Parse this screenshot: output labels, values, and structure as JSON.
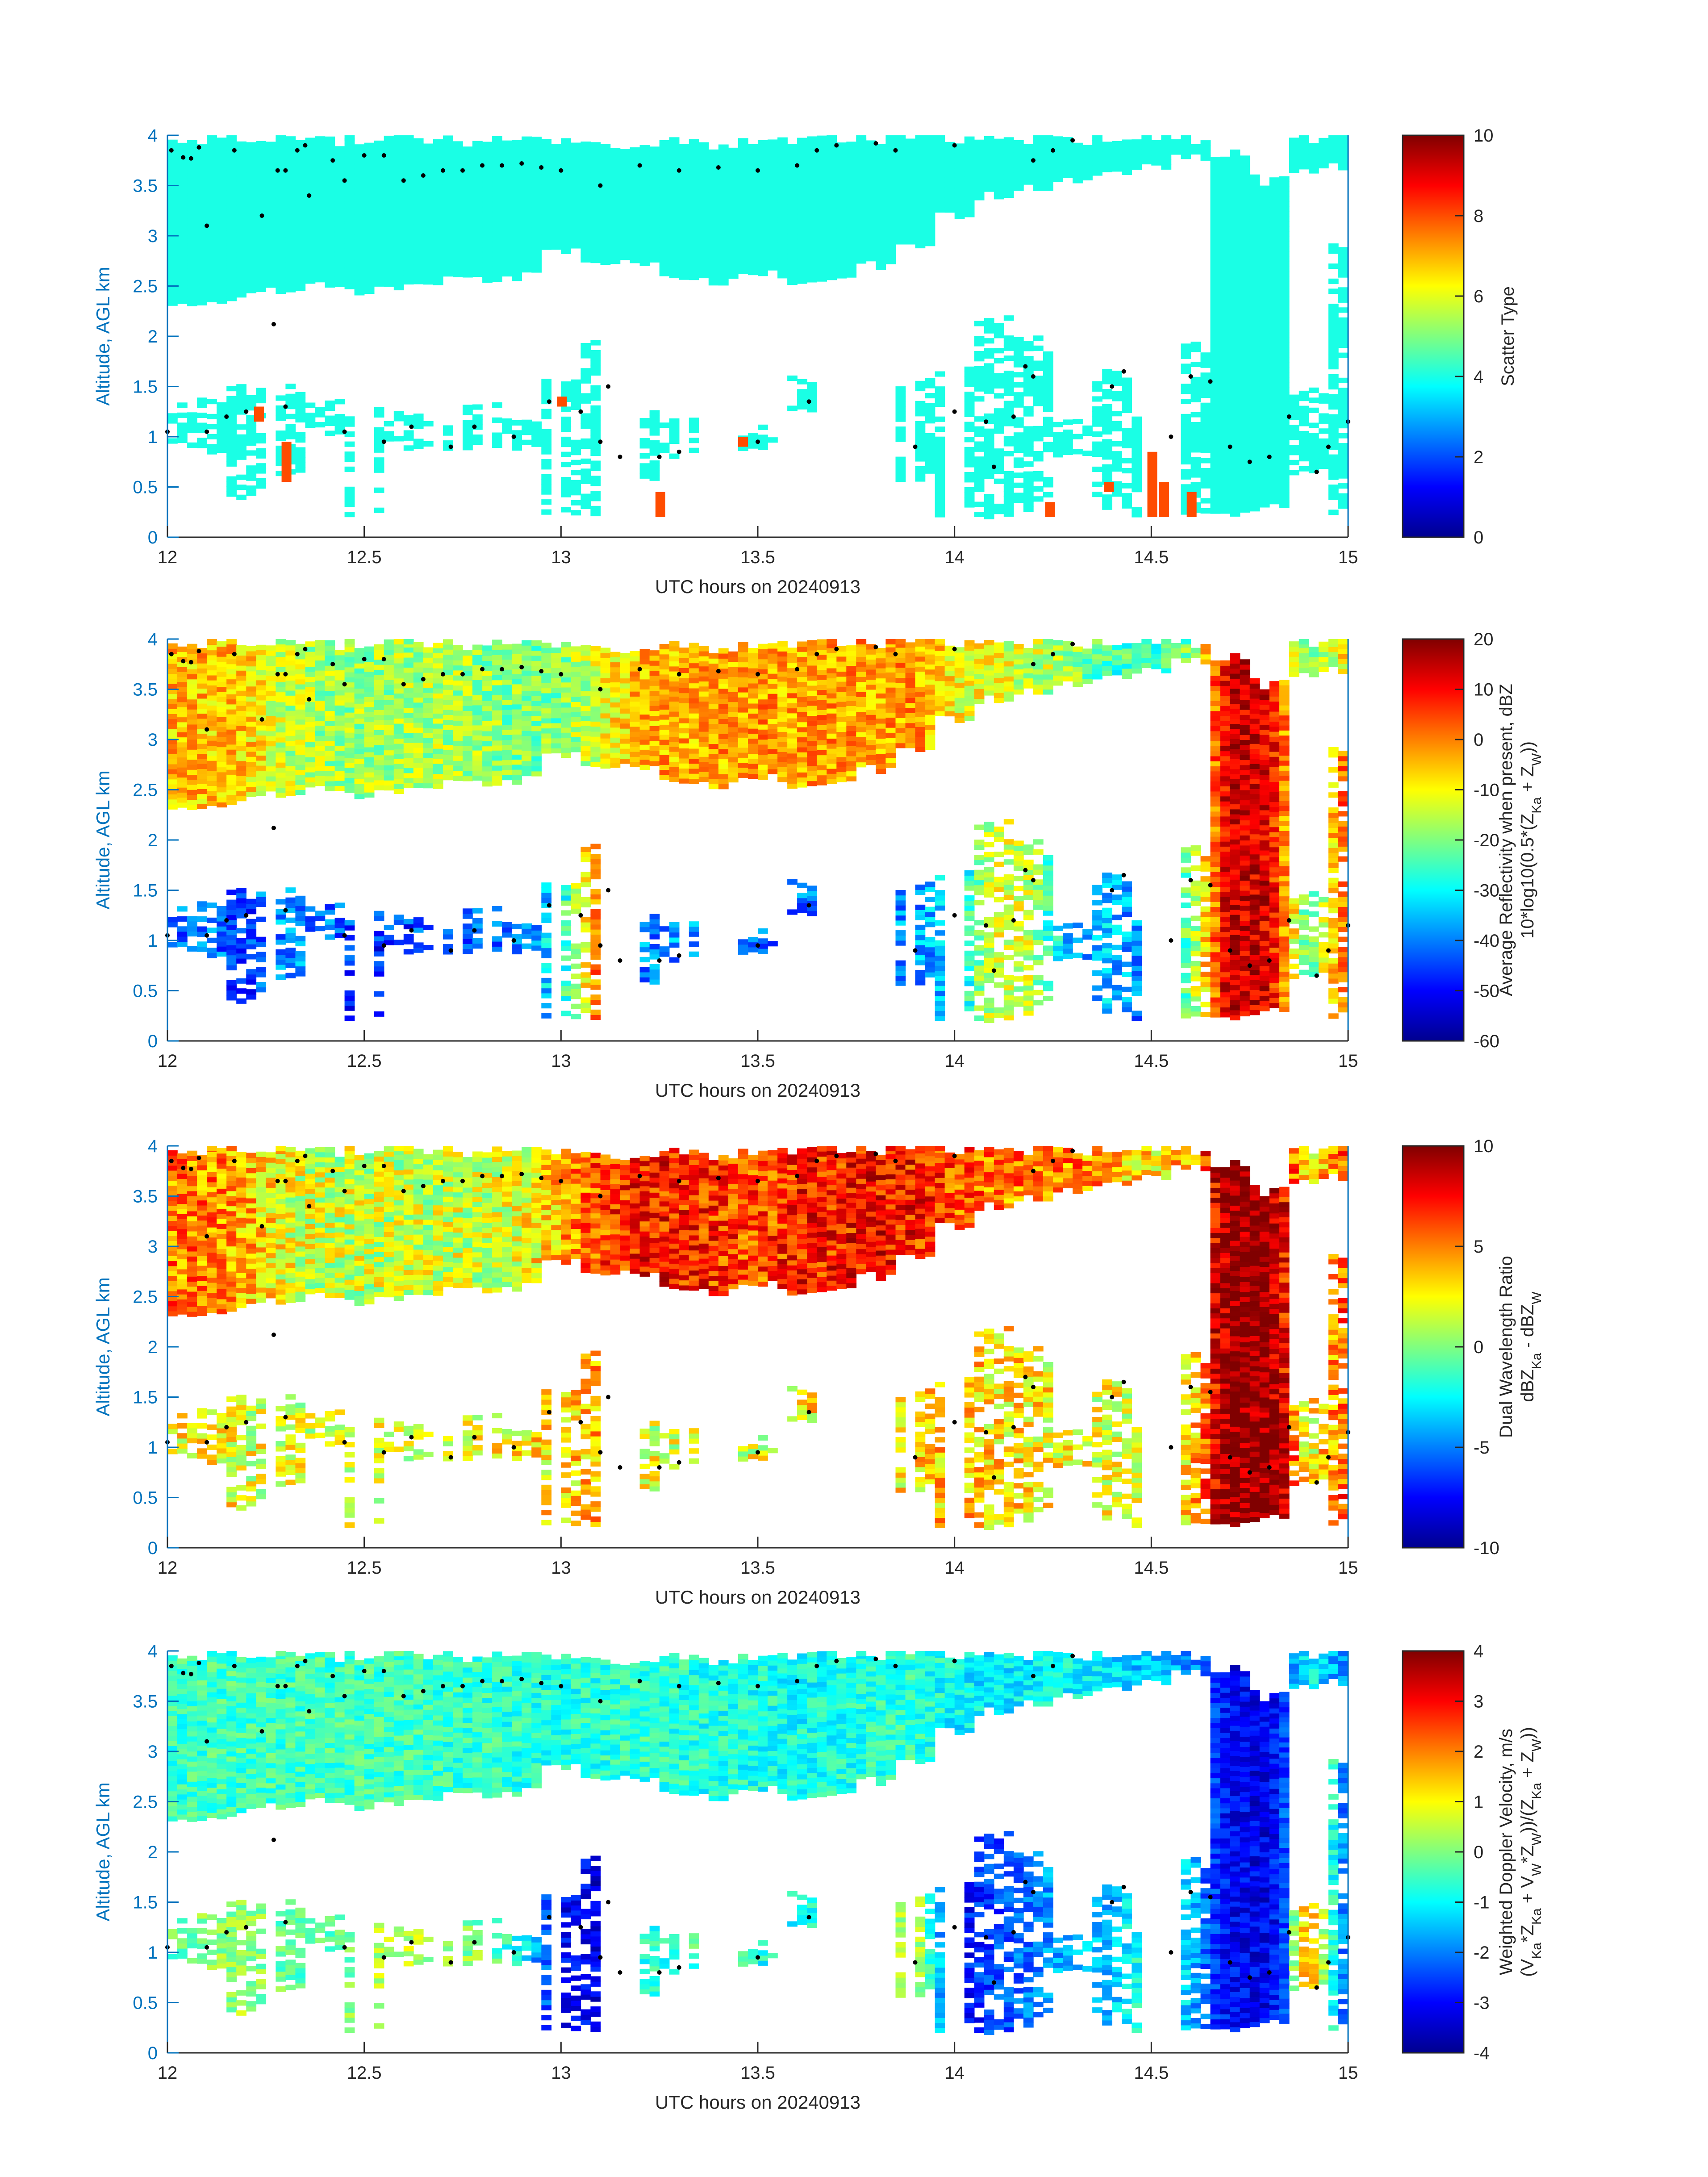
{
  "chart_data": [
    {
      "type": "heatmap",
      "panel": "scatter-type",
      "xlabel": "UTC hours on 20240913",
      "ylabel": "Altitude, AGL km",
      "xlim": [
        12,
        15
      ],
      "ylim": [
        0,
        4
      ],
      "xticks": [
        "12",
        "12.5",
        "13",
        "13.5",
        "14",
        "14.5",
        "15"
      ],
      "yticks": [
        "0",
        "0.5",
        "1",
        "1.5",
        "2",
        "2.5",
        "3",
        "3.5",
        "4"
      ],
      "colorbar": {
        "range": [
          0,
          10
        ],
        "ticks": [
          "0",
          "2",
          "4",
          "6",
          "8",
          "10"
        ],
        "label_lines": [
          [
            {
              "t": "Scatter Type"
            }
          ]
        ]
      },
      "upper_values": [
        4,
        4,
        4,
        4,
        4,
        4,
        4,
        4,
        4,
        4,
        4,
        4,
        4,
        4,
        4,
        4,
        4,
        4,
        4,
        4,
        4,
        4,
        4,
        4,
        4,
        4,
        4,
        4,
        4,
        4,
        4
      ],
      "lower_values": [
        4,
        4,
        4,
        4,
        4,
        4,
        4,
        4,
        4,
        4,
        4,
        4,
        4,
        4,
        4,
        4,
        4,
        4,
        4,
        4,
        4,
        4,
        4,
        4,
        4,
        4,
        4,
        4,
        4,
        4,
        4
      ],
      "noise": 0,
      "special_cells": [
        [
          12.22,
          1.15,
          1.3,
          8
        ],
        [
          12.29,
          0.55,
          0.95,
          8
        ],
        [
          12.99,
          1.3,
          1.4,
          8
        ],
        [
          13.24,
          0.2,
          0.45,
          8
        ],
        [
          13.45,
          0.9,
          1.0,
          8
        ],
        [
          14.23,
          0.2,
          0.35,
          8
        ],
        [
          14.38,
          0.45,
          0.55,
          8
        ],
        [
          14.49,
          0.2,
          0.85,
          8
        ],
        [
          14.52,
          0.2,
          0.55,
          8
        ],
        [
          14.59,
          0.2,
          0.45,
          8
        ]
      ]
    },
    {
      "type": "heatmap",
      "panel": "average-reflectivity",
      "xlabel": "UTC hours on 20240913",
      "ylabel": "Altitude, AGL km",
      "xlim": [
        12,
        15
      ],
      "ylim": [
        0,
        4
      ],
      "xticks": [
        "12",
        "12.5",
        "13",
        "13.5",
        "14",
        "14.5",
        "15"
      ],
      "yticks": [
        "0",
        "0.5",
        "1",
        "1.5",
        "2",
        "2.5",
        "3",
        "3.5",
        "4"
      ],
      "colorbar": {
        "range": [
          -60,
          20
        ],
        "ticks": [
          "-60",
          "-50",
          "-40",
          "-30",
          "-20",
          "-10",
          "0",
          "10",
          "20"
        ],
        "label_lines": [
          [
            {
              "t": "Average Reflectivity when present, dBZ"
            }
          ],
          [
            {
              "t": "10*log10(0.5*(Z"
            },
            {
              "sub": "Ka"
            },
            {
              "t": " + Z"
            },
            {
              "sub": "W"
            },
            {
              "t": "))"
            }
          ]
        ]
      },
      "upper_values": [
        -5,
        -5,
        -6,
        -15,
        -17,
        -18,
        -17,
        -16,
        -18,
        -20,
        -20,
        -12,
        -4,
        -3,
        -3,
        -2,
        -3,
        -2,
        -3,
        -2,
        -10,
        -12,
        -14,
        -18,
        -24,
        -26,
        -20,
        15,
        12,
        -22,
        -8
      ],
      "lower_values": [
        -42,
        -40,
        -45,
        -38,
        -40,
        -48,
        -45,
        -45,
        -42,
        -40,
        -30,
        5,
        -40,
        -38,
        -40,
        -42,
        -40,
        -40,
        -40,
        -38,
        -35,
        -12,
        -15,
        -40,
        -35,
        -42,
        -20,
        15,
        14,
        -25,
        5
      ],
      "noise": 8,
      "special_cells": []
    },
    {
      "type": "heatmap",
      "panel": "dual-wavelength-ratio",
      "xlabel": "UTC hours on 20240913",
      "ylabel": "Altitude, AGL km",
      "xlim": [
        12,
        15
      ],
      "ylim": [
        0,
        4
      ],
      "xticks": [
        "12",
        "12.5",
        "13",
        "13.5",
        "14",
        "14.5",
        "15"
      ],
      "yticks": [
        "0",
        "0.5",
        "1",
        "1.5",
        "2",
        "2.5",
        "3",
        "3.5",
        "4"
      ],
      "colorbar": {
        "range": [
          -10,
          10
        ],
        "ticks": [
          "-10",
          "-5",
          "0",
          "5",
          "10"
        ],
        "label_lines": [
          [
            {
              "t": "Dual Wavelength Ratio"
            }
          ],
          [
            {
              "t": "dBZ"
            },
            {
              "sub": "Ka"
            },
            {
              "t": " - dBZ"
            },
            {
              "sub": "W"
            }
          ]
        ]
      },
      "upper_values": [
        5,
        5,
        4,
        2,
        1.5,
        1.5,
        1.5,
        1.5,
        1.5,
        2,
        4,
        6,
        7,
        7,
        6.5,
        6,
        7,
        7,
        7.5,
        7,
        6,
        5,
        5,
        5,
        4,
        3,
        4,
        10,
        10,
        3,
        6
      ],
      "lower_values": [
        2,
        3,
        2,
        2,
        2,
        2,
        2,
        2,
        2,
        3,
        3,
        4,
        2,
        2,
        2,
        2,
        3,
        2,
        2,
        3,
        4,
        3,
        3,
        2,
        2,
        2,
        3,
        10,
        10,
        2,
        6
      ],
      "noise": 2.5,
      "special_cells": []
    },
    {
      "type": "heatmap",
      "panel": "weighted-doppler-velocity",
      "xlabel": "UTC hours on 20240913",
      "ylabel": "Altitude, AGL km",
      "xlim": [
        12,
        15
      ],
      "ylim": [
        0,
        4
      ],
      "xticks": [
        "12",
        "12.5",
        "13",
        "13.5",
        "14",
        "14.5",
        "15"
      ],
      "yticks": [
        "0",
        "0.5",
        "1",
        "1.5",
        "2",
        "2.5",
        "3",
        "3.5",
        "4"
      ],
      "colorbar": {
        "range": [
          -4,
          4
        ],
        "ticks": [
          "-4",
          "-3",
          "-2",
          "-1",
          "0",
          "1",
          "2",
          "3",
          "4"
        ],
        "label_lines": [
          [
            {
              "t": "Weighted Doppler Velocity, m/s"
            }
          ],
          [
            {
              "t": "(V"
            },
            {
              "sub": "Ka"
            },
            {
              "t": "*Z"
            },
            {
              "sub": "Ka"
            },
            {
              "t": " + V"
            },
            {
              "sub": "W"
            },
            {
              "t": "*Z"
            },
            {
              "sub": "W"
            },
            {
              "t": "))/(Z"
            },
            {
              "sub": "Ka"
            },
            {
              "t": " + Z"
            },
            {
              "sub": "W"
            },
            {
              "t": "))"
            }
          ]
        ]
      },
      "upper_values": [
        -0.6,
        -0.5,
        -0.5,
        -0.5,
        -0.5,
        -0.5,
        -0.5,
        -0.6,
        -0.6,
        -0.7,
        -0.8,
        -0.7,
        -0.6,
        -0.7,
        -0.8,
        -0.8,
        -0.9,
        -0.8,
        -0.7,
        -0.6,
        -1.0,
        -1.2,
        -1.0,
        -1.0,
        -1.3,
        -1.5,
        -1.8,
        -3.0,
        -3.2,
        -1.0,
        -2.0
      ],
      "lower_values": [
        -0.2,
        0,
        0.3,
        -0.3,
        -0.5,
        0.3,
        0.5,
        0.3,
        0,
        -1,
        -3,
        -3.2,
        -0.8,
        -0.5,
        -0.5,
        -0.8,
        -1,
        -0.5,
        -0.5,
        0.8,
        -3,
        -2.5,
        -2,
        -1.5,
        -1.5,
        -0.5,
        -1.5,
        -3.5,
        -3.2,
        2,
        -2.5
      ],
      "noise": 0.6,
      "special_cells": []
    }
  ],
  "layers": {
    "times": [
      12.0,
      12.1,
      12.2,
      12.3,
      12.4,
      12.5,
      12.6,
      12.7,
      12.8,
      12.9,
      13.0,
      13.1,
      13.2,
      13.3,
      13.4,
      13.5,
      13.6,
      13.7,
      13.8,
      13.9,
      14.0,
      14.1,
      14.2,
      14.3,
      14.4,
      14.5,
      14.6,
      14.7,
      14.8,
      14.9,
      15.0
    ],
    "upper_base": [
      2.35,
      2.35,
      2.4,
      2.45,
      2.5,
      2.45,
      2.5,
      2.55,
      2.55,
      2.6,
      2.85,
      2.75,
      2.75,
      2.6,
      2.55,
      2.65,
      2.55,
      2.55,
      2.7,
      2.9,
      3.2,
      3.4,
      3.5,
      3.55,
      3.6,
      3.7,
      3.8,
      0.2,
      0.3,
      3.65,
      3.7
    ],
    "upper_top": [
      4.0,
      4.0,
      4.0,
      4.0,
      4.0,
      4.0,
      4.0,
      4.0,
      4.0,
      4.0,
      4.0,
      3.95,
      3.95,
      3.95,
      3.95,
      3.95,
      3.95,
      4.0,
      4.0,
      4.0,
      4.0,
      4.0,
      4.0,
      4.0,
      4.0,
      4.0,
      4.0,
      3.85,
      3.6,
      4.0,
      4.0
    ],
    "lower_base": [
      0.9,
      0.8,
      0.4,
      0.6,
      1.0,
      0.2,
      0.9,
      0.9,
      0.9,
      0.9,
      0.2,
      0.2,
      0.6,
      0.8,
      0,
      0.9,
      1.2,
      0,
      0,
      0.6,
      0.2,
      0.2,
      0.3,
      0.8,
      0.3,
      0.2,
      0.2,
      0,
      0,
      0.6,
      0.2
    ],
    "lower_top": [
      1.3,
      1.4,
      1.5,
      1.5,
      1.4,
      1.3,
      1.3,
      1.2,
      1.3,
      1.2,
      1.6,
      2.0,
      1.3,
      1.2,
      0,
      1.1,
      1.6,
      0,
      0,
      1.6,
      1.7,
      2.2,
      2.0,
      1.2,
      1.7,
      1.2,
      2.0,
      0,
      0,
      1.5,
      3.0
    ]
  },
  "cloud_base_points": [
    [
      12.01,
      3.85
    ],
    [
      12.04,
      3.78
    ],
    [
      12.06,
      3.77
    ],
    [
      12.08,
      3.88
    ],
    [
      12.1,
      3.1
    ],
    [
      12.17,
      3.85
    ],
    [
      12.24,
      3.2
    ],
    [
      12.28,
      3.65
    ],
    [
      12.3,
      3.65
    ],
    [
      12.33,
      3.85
    ],
    [
      12.35,
      3.9
    ],
    [
      12.36,
      3.4
    ],
    [
      12.42,
      3.75
    ],
    [
      12.45,
      3.55
    ],
    [
      12.5,
      3.8
    ],
    [
      12.55,
      3.8
    ],
    [
      12.6,
      3.55
    ],
    [
      12.65,
      3.6
    ],
    [
      12.7,
      3.65
    ],
    [
      12.75,
      3.65
    ],
    [
      12.8,
      3.7
    ],
    [
      12.85,
      3.7
    ],
    [
      12.9,
      3.72
    ],
    [
      12.95,
      3.68
    ],
    [
      13.0,
      3.65
    ],
    [
      13.1,
      3.5
    ],
    [
      13.2,
      3.7
    ],
    [
      13.3,
      3.65
    ],
    [
      13.4,
      3.68
    ],
    [
      13.5,
      3.65
    ],
    [
      13.6,
      3.7
    ],
    [
      13.65,
      3.85
    ],
    [
      13.7,
      3.9
    ],
    [
      13.8,
      3.92
    ],
    [
      13.85,
      3.85
    ],
    [
      14.0,
      3.9
    ],
    [
      14.2,
      3.75
    ],
    [
      14.25,
      3.85
    ],
    [
      14.3,
      3.95
    ],
    [
      12.0,
      1.05
    ],
    [
      12.1,
      1.05
    ],
    [
      12.15,
      1.2
    ],
    [
      12.2,
      1.25
    ],
    [
      12.27,
      2.12
    ],
    [
      12.3,
      1.3
    ],
    [
      12.45,
      1.05
    ],
    [
      12.55,
      0.95
    ],
    [
      12.62,
      1.1
    ],
    [
      12.72,
      0.9
    ],
    [
      12.78,
      1.1
    ],
    [
      12.88,
      1.0
    ],
    [
      12.97,
      1.35
    ],
    [
      13.05,
      1.25
    ],
    [
      13.1,
      0.95
    ],
    [
      13.12,
      1.5
    ],
    [
      13.15,
      0.8
    ],
    [
      13.25,
      0.8
    ],
    [
      13.3,
      0.85
    ],
    [
      13.5,
      0.95
    ],
    [
      13.63,
      1.35
    ],
    [
      13.9,
      0.9
    ],
    [
      14.0,
      1.25
    ],
    [
      14.08,
      1.15
    ],
    [
      14.1,
      0.7
    ],
    [
      14.15,
      1.2
    ],
    [
      14.18,
      1.7
    ],
    [
      14.2,
      1.6
    ],
    [
      14.4,
      1.5
    ],
    [
      14.43,
      1.65
    ],
    [
      14.55,
      1.0
    ],
    [
      14.6,
      1.6
    ],
    [
      14.65,
      1.55
    ],
    [
      14.7,
      0.9
    ],
    [
      14.75,
      0.75
    ],
    [
      14.8,
      0.8
    ],
    [
      14.85,
      1.2
    ],
    [
      14.92,
      0.65
    ],
    [
      14.95,
      0.9
    ],
    [
      15.0,
      1.15
    ]
  ],
  "colors": {
    "axis_label": "#0072BD",
    "tick_text": "#262626",
    "point": "#000000"
  }
}
